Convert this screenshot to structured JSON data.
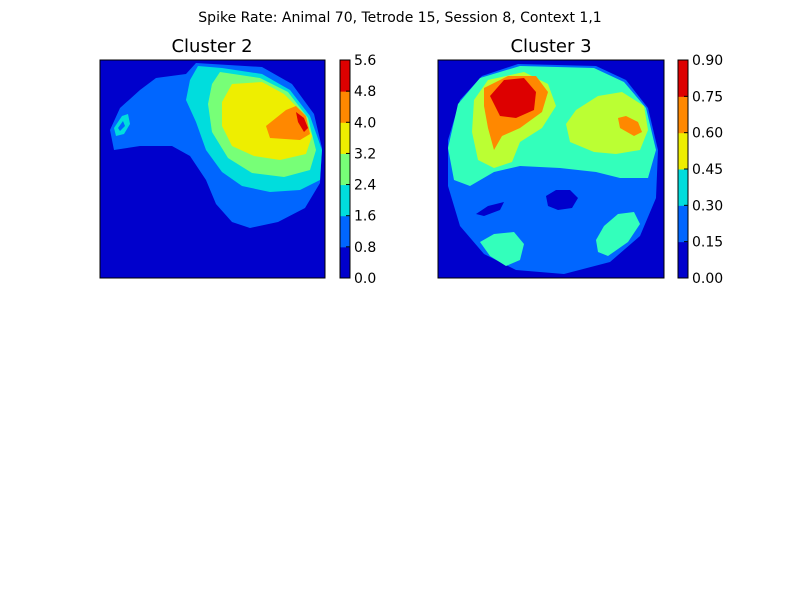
{
  "suptitle": "Spike Rate: Animal 70, Tetrode 15, Session 8, Context 1,1",
  "colormap": [
    "#0000cc",
    "#0066ff",
    "#00dddd",
    "#77ff77",
    "#eeee00",
    "#ff8800",
    "#dd0000"
  ],
  "chart_data": [
    {
      "type": "heatmap",
      "title": "Cluster 2",
      "colorbar_ticks": [
        "0.0",
        "0.8",
        "1.6",
        "2.4",
        "3.2",
        "4.0",
        "4.8",
        "5.6"
      ],
      "levels": [
        0.0,
        0.8,
        1.6,
        2.4,
        3.2,
        4.0,
        4.8,
        5.6
      ],
      "zlim": [
        0.0,
        5.6
      ],
      "xlabel": "",
      "ylabel": "",
      "x_ticks_labeled": false,
      "y_ticks_labeled": false,
      "grid": false,
      "regions": [
        {
          "level": "0.8–1.6",
          "description": "arena"
        },
        {
          "level": "1.6–2.4",
          "description": "upper right band"
        },
        {
          "level": "2.4–3.2",
          "description": "around the upper right hotspot"
        },
        {
          "level": "4.0–4.8",
          "description": "upper right"
        },
        {
          "level": "4.8–5.6",
          "description": "peak, upper right"
        }
      ]
    },
    {
      "type": "heatmap",
      "title": "Cluster 3",
      "colorbar_ticks": [
        "0.00",
        "0.15",
        "0.30",
        "0.45",
        "0.60",
        "0.75",
        "0.90"
      ],
      "levels": [
        0.0,
        0.15,
        0.3,
        0.45,
        0.6,
        0.75,
        0.9
      ],
      "zlim": [
        0.0,
        0.9
      ],
      "xlabel": "",
      "ylabel": "",
      "x_ticks_labeled": false,
      "y_ticks_labeled": false,
      "grid": false,
      "regions": [
        {
          "level": "0.15–0.30",
          "description": "circular arena floor"
        },
        {
          "level": "0.30–0.45",
          "description": "upper half and two lower blobs"
        },
        {
          "level": "0.45–0.60",
          "description": "upper left and upper right lobes"
        },
        {
          "level": "0.60–0.75",
          "description": "upper left and right"
        },
        {
          "level": "0.75–0.90",
          "description": "peak, upper left"
        }
      ]
    }
  ]
}
